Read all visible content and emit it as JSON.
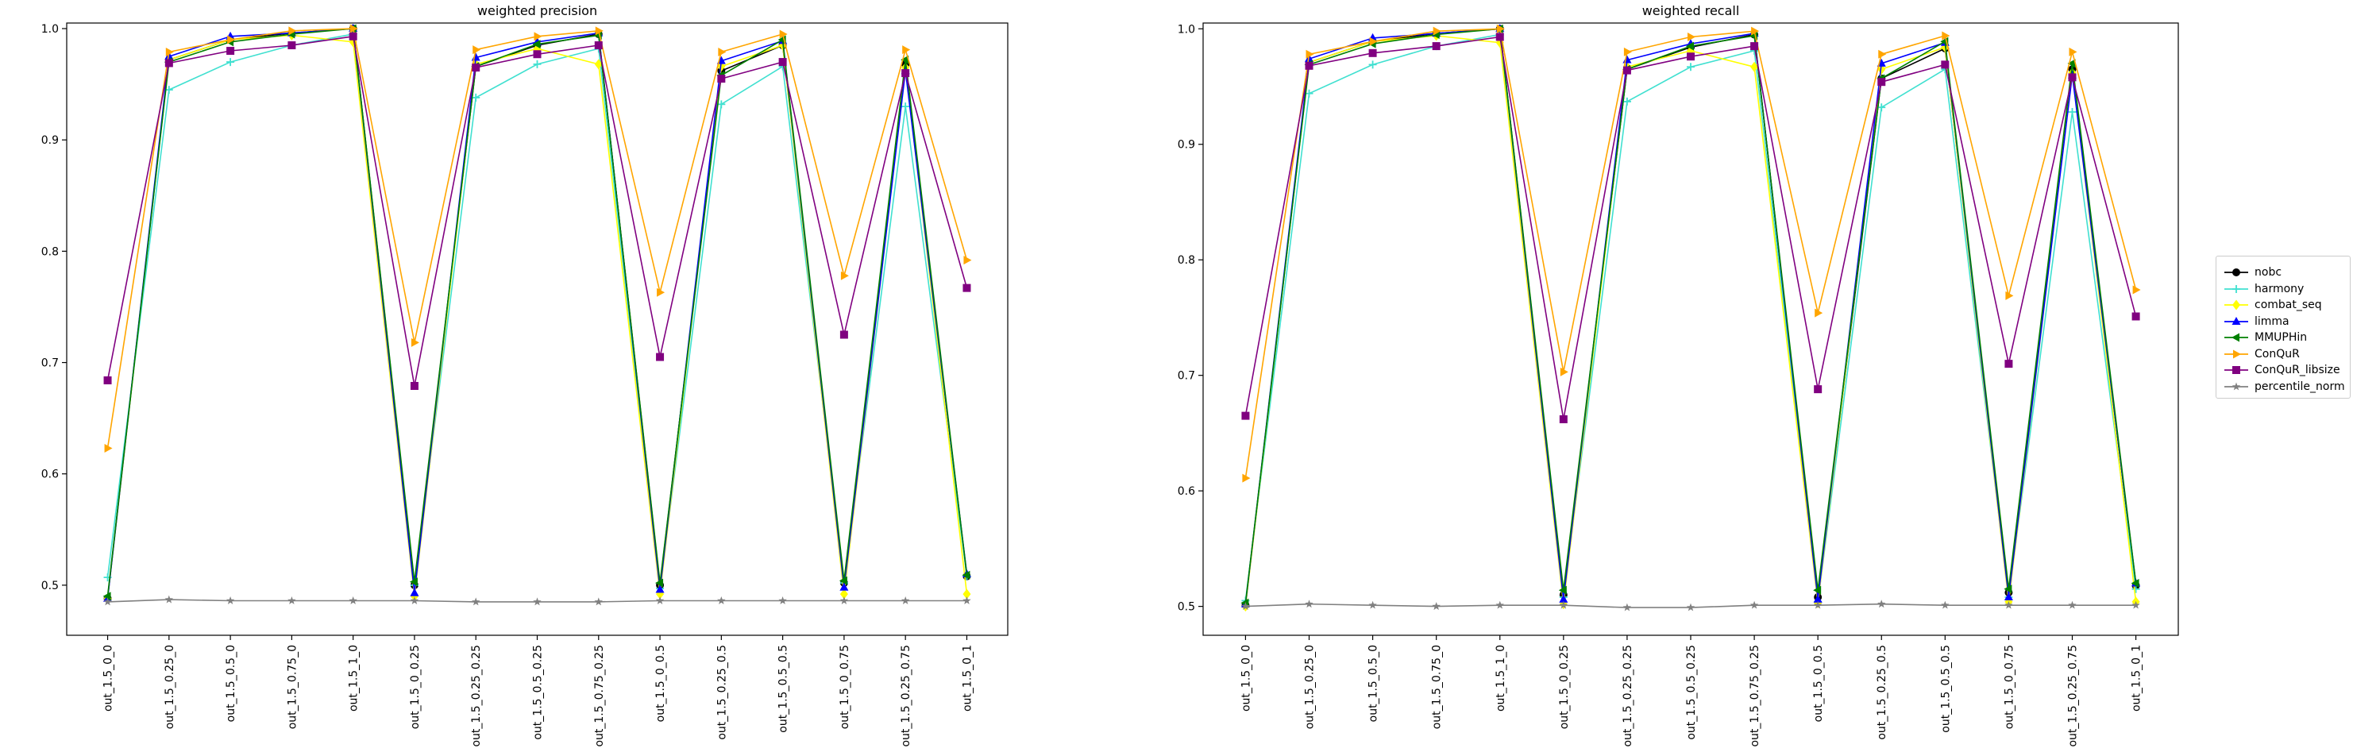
{
  "chart_data": [
    {
      "type": "line",
      "title": "weighted precision",
      "xlabel": "",
      "ylabel": "",
      "ylim": [
        0.455,
        1.005
      ],
      "yticks": [
        "0.5",
        "0.6",
        "0.7",
        "0.8",
        "0.9",
        "1.0"
      ],
      "grid": false,
      "categories": [
        "out_1.5_0_0",
        "out_1.5_0.25_0",
        "out_1.5_0.5_0",
        "out_1.5_0.75_0",
        "out_1.5_1_0",
        "out_1.5_0_0.25",
        "out_1.5_0.25_0.25",
        "out_1.5_0.5_0.25",
        "out_1.5_0.75_0.25",
        "out_1.5_0_0.5",
        "out_1.5_0.25_0.5",
        "out_1.5_0.5_0.5",
        "out_1.5_0_0.75",
        "out_1.5_0.25_0.75",
        "out_1.5_0_1"
      ],
      "series": [
        {
          "name": "nobc",
          "color": "#000000",
          "marker": "circle",
          "values": [
            0.488,
            0.972,
            0.99,
            0.996,
            1.0,
            0.5,
            0.966,
            0.985,
            0.995,
            0.5,
            0.962,
            0.985,
            0.502,
            0.968,
            0.508
          ]
        },
        {
          "name": "harmony",
          "color": "#40e0d0",
          "marker": "plus",
          "values": [
            0.507,
            0.945,
            0.97,
            0.985,
            0.995,
            0.5,
            0.938,
            0.968,
            0.982,
            0.497,
            0.932,
            0.966,
            0.502,
            0.93,
            0.508
          ]
        },
        {
          "name": "combat_seq",
          "color": "#ffff00",
          "marker": "diamond",
          "values": [
            0.488,
            0.972,
            0.99,
            0.994,
            0.988,
            0.49,
            0.968,
            0.982,
            0.968,
            0.492,
            0.966,
            0.985,
            0.492,
            0.965,
            0.492
          ]
        },
        {
          "name": "limma",
          "color": "#0000ff",
          "marker": "triangle-up",
          "values": [
            0.488,
            0.975,
            0.993,
            0.996,
            1.0,
            0.493,
            0.974,
            0.988,
            0.996,
            0.496,
            0.971,
            0.989,
            0.498,
            0.962,
            0.51
          ]
        },
        {
          "name": "MMUPHin",
          "color": "#008000",
          "marker": "triangle-left",
          "values": [
            0.49,
            0.97,
            0.988,
            0.995,
            1.0,
            0.503,
            0.966,
            0.986,
            0.994,
            0.502,
            0.958,
            0.99,
            0.504,
            0.972,
            0.509
          ]
        },
        {
          "name": "ConQuR",
          "color": "#ffa500",
          "marker": "triangle-right",
          "values": [
            0.623,
            0.979,
            0.99,
            0.998,
            1.0,
            0.718,
            0.981,
            0.993,
            0.998,
            0.763,
            0.979,
            0.995,
            0.778,
            0.981,
            0.792
          ]
        },
        {
          "name": "ConQuR_libsize",
          "color": "#800080",
          "marker": "square",
          "values": [
            0.684,
            0.969,
            0.98,
            0.985,
            0.993,
            0.679,
            0.965,
            0.977,
            0.985,
            0.705,
            0.955,
            0.97,
            0.725,
            0.96,
            0.767
          ]
        },
        {
          "name": "percentile_norm",
          "color": "#808080",
          "marker": "star",
          "values": [
            0.485,
            0.487,
            0.486,
            0.486,
            0.486,
            0.486,
            0.485,
            0.485,
            0.485,
            0.486,
            0.486,
            0.486,
            0.486,
            0.486,
            0.486
          ]
        }
      ]
    },
    {
      "type": "line",
      "title": "weighted recall",
      "xlabel": "",
      "ylabel": "",
      "ylim": [
        0.475,
        1.005
      ],
      "yticks": [
        "0.5",
        "0.6",
        "0.7",
        "0.8",
        "0.9",
        "1.0"
      ],
      "grid": false,
      "categories": [
        "out_1.5_0_0",
        "out_1.5_0.25_0",
        "out_1.5_0.5_0",
        "out_1.5_0.75_0",
        "out_1.5_1_0",
        "out_1.5_0_0.25",
        "out_1.5_0.25_0.25",
        "out_1.5_0.5_0.25",
        "out_1.5_0.75_0.25",
        "out_1.5_0_0.5",
        "out_1.5_0.25_0.5",
        "out_1.5_0.5_0.5",
        "out_1.5_0_0.75",
        "out_1.5_0.25_0.75",
        "out_1.5_0_1"
      ],
      "series": [
        {
          "name": "nobc",
          "color": "#000000",
          "marker": "circle",
          "values": [
            0.501,
            0.971,
            0.989,
            0.996,
            1.0,
            0.51,
            0.965,
            0.984,
            0.995,
            0.508,
            0.957,
            0.983,
            0.512,
            0.965,
            0.518
          ]
        },
        {
          "name": "harmony",
          "color": "#40e0d0",
          "marker": "plus",
          "values": [
            0.505,
            0.944,
            0.969,
            0.985,
            0.995,
            0.508,
            0.937,
            0.967,
            0.981,
            0.504,
            0.932,
            0.965,
            0.508,
            0.928,
            0.515
          ]
        },
        {
          "name": "combat_seq",
          "color": "#ffff00",
          "marker": "diamond",
          "values": [
            0.5,
            0.971,
            0.989,
            0.994,
            0.988,
            0.502,
            0.967,
            0.981,
            0.967,
            0.503,
            0.965,
            0.984,
            0.504,
            0.962,
            0.504
          ]
        },
        {
          "name": "limma",
          "color": "#0000ff",
          "marker": "triangle-up",
          "values": [
            0.502,
            0.974,
            0.992,
            0.996,
            1.0,
            0.506,
            0.973,
            0.987,
            0.996,
            0.506,
            0.97,
            0.988,
            0.508,
            0.96,
            0.52
          ]
        },
        {
          "name": "MMUPHin",
          "color": "#008000",
          "marker": "triangle-left",
          "values": [
            0.503,
            0.969,
            0.987,
            0.995,
            1.0,
            0.514,
            0.965,
            0.985,
            0.994,
            0.514,
            0.957,
            0.989,
            0.515,
            0.97,
            0.52
          ]
        },
        {
          "name": "ConQuR",
          "color": "#ffa500",
          "marker": "triangle-right",
          "values": [
            0.611,
            0.978,
            0.989,
            0.998,
            1.0,
            0.703,
            0.98,
            0.993,
            0.998,
            0.754,
            0.978,
            0.994,
            0.769,
            0.98,
            0.774
          ]
        },
        {
          "name": "ConQuR_libsize",
          "color": "#800080",
          "marker": "square",
          "values": [
            0.665,
            0.968,
            0.979,
            0.985,
            0.993,
            0.662,
            0.964,
            0.976,
            0.985,
            0.688,
            0.954,
            0.969,
            0.71,
            0.958,
            0.751
          ]
        },
        {
          "name": "percentile_norm",
          "color": "#808080",
          "marker": "star",
          "values": [
            0.5,
            0.502,
            0.501,
            0.5,
            0.501,
            0.501,
            0.499,
            0.499,
            0.501,
            0.501,
            0.502,
            0.501,
            0.501,
            0.501,
            0.501
          ]
        }
      ]
    }
  ]
}
